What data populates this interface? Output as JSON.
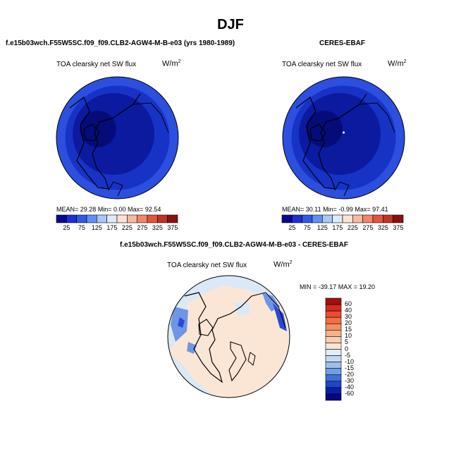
{
  "page_title": "DJF",
  "panels": [
    {
      "title": "f.e15b03wch.F55W5SC.f09_f09.CLB2-AGW4-M-B-e03 (yrs 1980-1989)",
      "variable": "TOA clearsky net SW flux",
      "units_base": "W/m",
      "units_exp": "2",
      "stats": "MEAN=   29.28   Min=    0.00   Max=   92.54"
    },
    {
      "title": "CERES-EBAF",
      "variable": "TOA clearsky net SW flux",
      "units_base": "W/m",
      "units_exp": "2",
      "stats": "MEAN=   30.11   Min=   -0.99   Max=   97.41"
    },
    {
      "title": "f.e15b03wch.F55W5SC.f09_f09.CLB2-AGW4-M-B-e03 - CERES-EBAF",
      "variable": "TOA clearsky net SW flux",
      "units_base": "W/m",
      "units_exp": "2",
      "stats": "MIN = -39.17  MAX =  19.20"
    }
  ],
  "colorbar_levels": [
    "25",
    "75",
    "125",
    "175",
    "225",
    "275",
    "325",
    "375"
  ],
  "colorbar_colors": [
    "#08088e",
    "#1d2ed6",
    "#2f5ae6",
    "#5f8ff2",
    "#a8c8f6",
    "#dcebf7",
    "#fbe2d2",
    "#f7b9a2",
    "#f28668",
    "#e2553c",
    "#c23225",
    "#8a1010"
  ],
  "diff_colorbar_levels": [
    "60",
    "40",
    "30",
    "20",
    "15",
    "10",
    "5",
    "0",
    "-5",
    "-10",
    "-15",
    "-20",
    "-30",
    "-40",
    "-60"
  ],
  "diff_colorbar_colors": [
    "#a50f0f",
    "#d62a20",
    "#ee4a2e",
    "#f2703f",
    "#f29060",
    "#f6b08a",
    "#f9cdb2",
    "#fbe3d3",
    "#e0ecf6",
    "#c2d8f1",
    "#9dbfec",
    "#6f9de6",
    "#3e6fdc",
    "#1f46c8",
    "#0a1fa8",
    "#030780"
  ],
  "map_colors": {
    "ring_outer": "#2c4fe0",
    "ring_mid": "#1733c6",
    "inner": "#0c1aa0",
    "core": "#050c7a",
    "diff_base": "#fbe6d6",
    "diff_light_blue": "#dbe8f6",
    "diff_blue": "#6d96e6",
    "diff_dark_blue": "#2a49d8"
  }
}
